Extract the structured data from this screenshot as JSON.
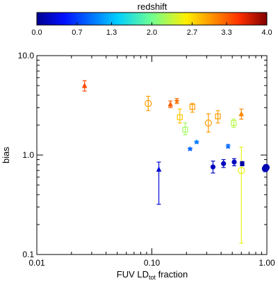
{
  "chart_data": {
    "type": "scatter",
    "xlabel_main": "FUV LD",
    "xlabel_sub": "tot",
    "xlabel_tail": " fraction",
    "ylabel": "bias",
    "x_scale": "log",
    "y_scale": "log",
    "xlim": [
      0.01,
      1.0
    ],
    "ylim": [
      0.1,
      10.0
    ],
    "x_ticks": [
      0.01,
      0.1,
      1.0
    ],
    "x_tick_labels": [
      "0.01",
      "0.10",
      "1.00"
    ],
    "y_ticks": [
      0.1,
      1.0,
      10.0
    ],
    "y_tick_labels": [
      "0.1",
      "1.0",
      "10.0"
    ],
    "grid": false,
    "colorbar": {
      "label": "redshift",
      "range": [
        0.0,
        4.0
      ],
      "ticks": [
        0.0,
        0.7,
        1.3,
        2.0,
        2.7,
        3.3,
        4.0
      ],
      "tick_labels": [
        "0.0",
        "0.7",
        "1.3",
        "2.0",
        "2.7",
        "3.3",
        "4.0"
      ],
      "colormap": "rainbow"
    },
    "points": [
      {
        "x": 0.026,
        "y": 5.0,
        "ylo": 4.4,
        "yhi": 5.6,
        "z": 3.4,
        "marker": "triangle"
      },
      {
        "x": 0.093,
        "y": 3.3,
        "ylo": 2.8,
        "yhi": 3.9,
        "z": 3.0,
        "marker": "circle"
      },
      {
        "x": 0.145,
        "y": 3.25,
        "ylo": 3.0,
        "yhi": 3.5,
        "z": 3.3,
        "marker": "triangle"
      },
      {
        "x": 0.165,
        "y": 3.5,
        "ylo": 3.3,
        "yhi": 3.7,
        "z": 3.2,
        "marker": "star"
      },
      {
        "x": 0.175,
        "y": 2.4,
        "ylo": 2.1,
        "yhi": 2.9,
        "z": 2.8,
        "marker": "square"
      },
      {
        "x": 0.195,
        "y": 1.8,
        "ylo": 1.6,
        "yhi": 2.1,
        "z": 2.2,
        "marker": "square"
      },
      {
        "x": 0.225,
        "y": 3.05,
        "ylo": 2.7,
        "yhi": 3.3,
        "z": 3.0,
        "marker": "square"
      },
      {
        "x": 0.215,
        "y": 1.15,
        "ylo": 1.12,
        "yhi": 1.18,
        "z": 0.9,
        "marker": "star"
      },
      {
        "x": 0.245,
        "y": 1.35,
        "ylo": 1.32,
        "yhi": 1.38,
        "z": 1.0,
        "marker": "star"
      },
      {
        "x": 0.115,
        "y": 0.72,
        "ylo": 0.32,
        "yhi": 0.85,
        "z": 0.3,
        "marker": "triangle"
      },
      {
        "x": 0.31,
        "y": 2.1,
        "ylo": 1.7,
        "yhi": 2.6,
        "z": 3.0,
        "marker": "circle"
      },
      {
        "x": 0.375,
        "y": 2.45,
        "ylo": 2.1,
        "yhi": 2.8,
        "z": 3.0,
        "marker": "square"
      },
      {
        "x": 0.515,
        "y": 2.1,
        "ylo": 1.9,
        "yhi": 2.3,
        "z": 2.3,
        "marker": "square"
      },
      {
        "x": 0.46,
        "y": 1.22,
        "ylo": 1.18,
        "yhi": 1.28,
        "z": 0.9,
        "marker": "star"
      },
      {
        "x": 0.6,
        "y": 2.6,
        "ylo": 2.3,
        "yhi": 2.9,
        "z": 3.1,
        "marker": "triangle"
      },
      {
        "x": 0.34,
        "y": 0.76,
        "ylo": 0.66,
        "yhi": 0.87,
        "z": 0.2,
        "marker": "circle"
      },
      {
        "x": 0.42,
        "y": 0.82,
        "ylo": 0.75,
        "yhi": 0.9,
        "z": 0.2,
        "marker": "circle"
      },
      {
        "x": 0.52,
        "y": 0.85,
        "ylo": 0.78,
        "yhi": 0.92,
        "z": 0.2,
        "marker": "circle"
      },
      {
        "x": 0.6,
        "y": 0.7,
        "ylo": 0.13,
        "yhi": 1.2,
        "z": 2.5,
        "marker": "circle"
      },
      {
        "x": 0.61,
        "y": 0.82,
        "ylo": 0.78,
        "yhi": 0.86,
        "z": 0.1,
        "marker": "square"
      },
      {
        "x": 0.97,
        "y": 0.73,
        "ylo": 0.68,
        "yhi": 0.78,
        "z": 0.2,
        "marker": "circle"
      },
      {
        "x": 0.985,
        "y": 0.75,
        "ylo": 0.72,
        "yhi": 0.79,
        "z": 0.15,
        "marker": "circle"
      }
    ]
  }
}
